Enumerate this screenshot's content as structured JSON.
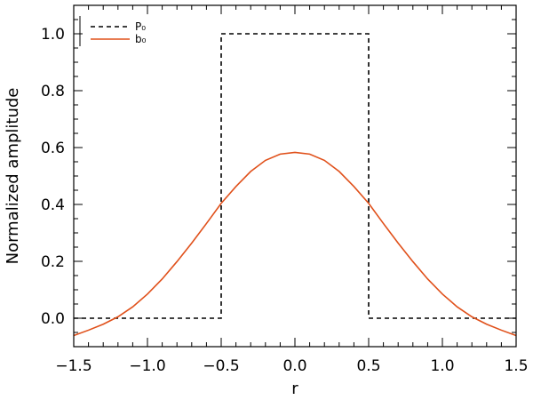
{
  "chart_data": {
    "type": "line",
    "title": "",
    "xlabel": "r",
    "ylabel": "Normalized amplitude",
    "xlim": [
      -1.5,
      1.5
    ],
    "ylim": [
      -0.1,
      1.1
    ],
    "x_ticks": [
      "−1.5",
      "−1.0",
      "−0.5",
      "0.0",
      "0.5",
      "1.0",
      "1.5"
    ],
    "x_tick_values": [
      -1.5,
      -1.0,
      -0.5,
      0.0,
      0.5,
      1.0,
      1.5
    ],
    "y_ticks": [
      "0.0",
      "0.2",
      "0.4",
      "0.6",
      "0.8",
      "1.0"
    ],
    "y_tick_values": [
      0.0,
      0.2,
      0.4,
      0.6,
      0.8,
      1.0
    ],
    "x_minor_step": 0.1,
    "y_minor_step": 0.05,
    "grid": false,
    "legend_position": "top-left",
    "series": [
      {
        "name": "P₀",
        "style": "dashed",
        "color": "#000000",
        "x": [
          -1.5,
          -0.5,
          -0.5,
          0.5,
          0.5,
          1.5
        ],
        "y": [
          0.0,
          0.0,
          1.0,
          1.0,
          0.0,
          0.0
        ]
      },
      {
        "name": "b₀",
        "style": "solid",
        "color": "#e0501a",
        "x": [
          -1.5,
          -1.4,
          -1.3,
          -1.2,
          -1.1,
          -1.0,
          -0.9,
          -0.8,
          -0.7,
          -0.6,
          -0.5,
          -0.4,
          -0.3,
          -0.2,
          -0.1,
          0.0,
          0.1,
          0.2,
          0.3,
          0.4,
          0.5,
          0.6,
          0.7,
          0.8,
          0.9,
          1.0,
          1.1,
          1.2,
          1.3,
          1.4,
          1.5
        ],
        "y": [
          -0.061,
          -0.042,
          -0.021,
          0.005,
          0.04,
          0.085,
          0.138,
          0.199,
          0.264,
          0.333,
          0.404,
          0.463,
          0.516,
          0.555,
          0.577,
          0.583,
          0.577,
          0.555,
          0.516,
          0.463,
          0.404,
          0.333,
          0.264,
          0.199,
          0.138,
          0.085,
          0.04,
          0.005,
          -0.021,
          -0.042,
          -0.061
        ]
      }
    ]
  }
}
